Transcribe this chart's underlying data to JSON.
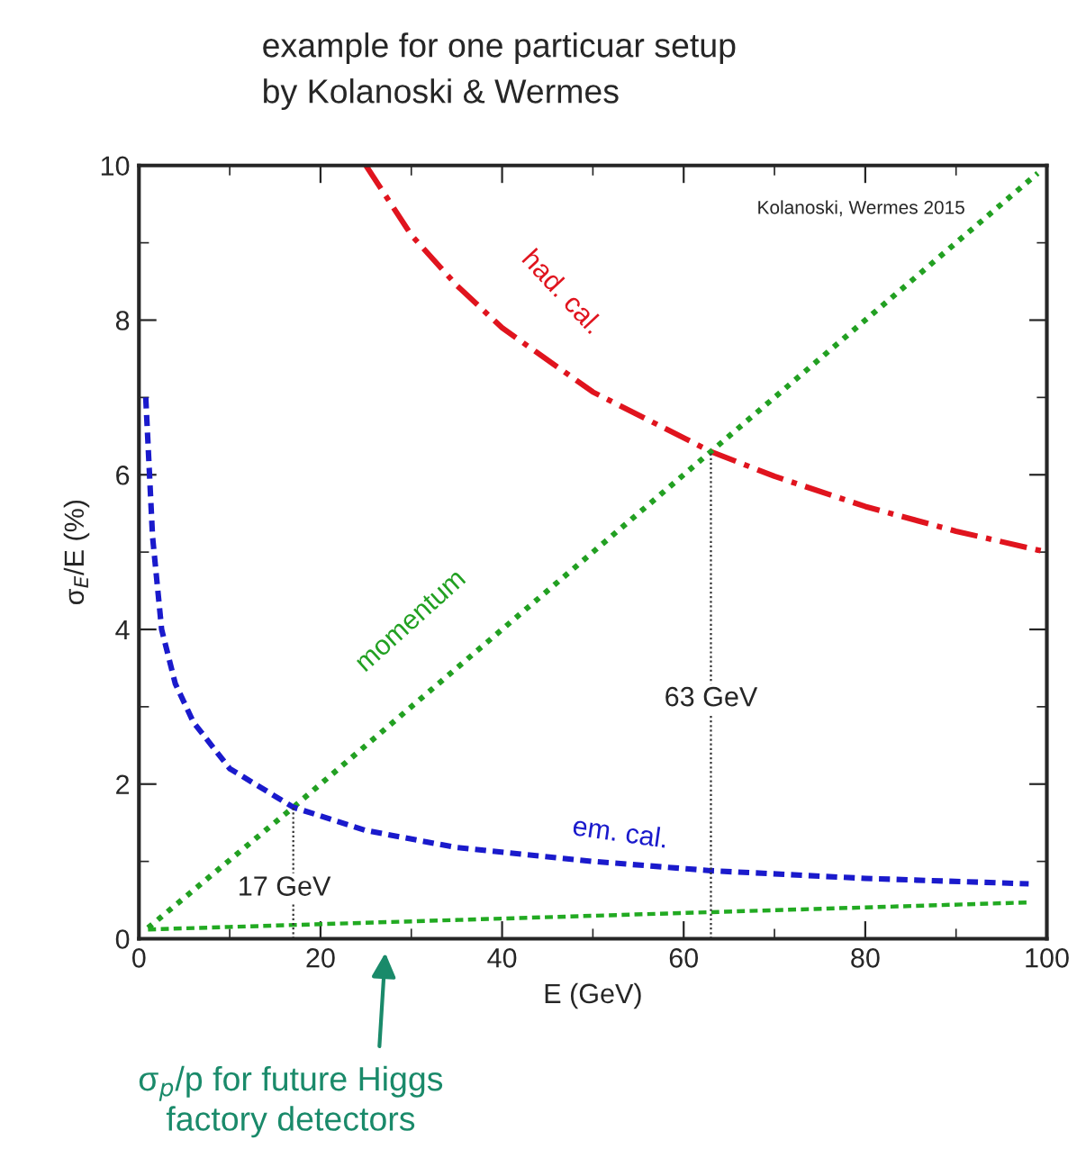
{
  "chart_data": {
    "type": "line",
    "title": "example for one particuar setup",
    "subtitle": "by Kolanoski & Wermes",
    "xlabel": "E (GeV)",
    "ylabel": "σ$_{E}$/E (%)",
    "xlim": [
      0,
      100
    ],
    "ylim": [
      0,
      10
    ],
    "xticks": [
      0,
      20,
      40,
      60,
      80,
      100
    ],
    "yticks": [
      0,
      2,
      4,
      6,
      8,
      10
    ],
    "grid": false,
    "series": [
      {
        "name": "had. cal.",
        "color": "#e0141e",
        "line_style": "dashdot",
        "x": [
          25,
          30,
          35,
          40,
          50,
          63,
          70,
          80,
          90,
          100
        ],
        "values": [
          10,
          9.1,
          8.45,
          7.9,
          7.07,
          6.3,
          5.98,
          5.59,
          5.27,
          5.0
        ]
      },
      {
        "name": "momentum",
        "color": "#22a022",
        "line_style": "dotted",
        "x": [
          1,
          17,
          63,
          99
        ],
        "values": [
          0.14,
          1.7,
          6.3,
          9.9
        ]
      },
      {
        "name": "em. cal.",
        "color": "#1a1acc",
        "line_style": "dashed",
        "x": [
          0.75,
          1.5,
          2.5,
          4,
          6,
          10,
          17,
          25,
          35,
          50,
          63,
          80,
          98
        ],
        "values": [
          7.0,
          5.2,
          4.0,
          3.3,
          2.8,
          2.2,
          1.7,
          1.4,
          1.18,
          1.0,
          0.88,
          0.78,
          0.71
        ]
      },
      {
        "color": "#22aa22",
        "line_style": "dashed",
        "x": [
          1,
          98
        ],
        "values": [
          0.12,
          0.47
        ]
      },
      {
        "color": "#333333",
        "line_style": "dotted",
        "x": [
          17,
          17
        ],
        "values": [
          0,
          1.7
        ]
      },
      {
        "color": "#333333",
        "line_style": "dotted",
        "x": [
          63,
          63
        ],
        "values": [
          0,
          6.3
        ]
      }
    ],
    "annotations": [
      "17 GeV",
      "63 GeV",
      "Kolanoski, Wermes 2015",
      "σ$_{p}$/p for future Higgs\nfactory detectors"
    ]
  }
}
